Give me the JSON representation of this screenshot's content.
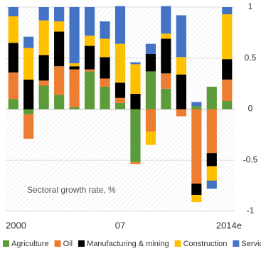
{
  "chart_data": {
    "type": "stacked-bar",
    "annotation": "Sectoral growth rate, %",
    "categories": [
      "2000",
      null,
      null,
      null,
      null,
      null,
      null,
      "07",
      null,
      null,
      null,
      null,
      null,
      null,
      "2014e"
    ],
    "series": [
      {
        "name": "Agriculture",
        "color": "#5b9b3a",
        "values": [
          0.1,
          -0.05,
          0.23,
          0.14,
          0.02,
          0.37,
          0.22,
          0.06,
          -0.52,
          0.37,
          0.2,
          0,
          0.03,
          0.22,
          0.08
        ]
      },
      {
        "name": "Oil",
        "color": "#ed7d31",
        "values": [
          0.26,
          -0.24,
          0.05,
          0.28,
          0.37,
          0.02,
          0.08,
          0.05,
          -0.02,
          -0.22,
          0.15,
          -0.07,
          -0.73,
          -0.43,
          0.21
        ]
      },
      {
        "name": "Manufacturing & mining",
        "color": "#000000",
        "values": [
          0.29,
          0.29,
          0.25,
          0.34,
          0.03,
          0.23,
          0.21,
          0.15,
          0.15,
          0.17,
          0.34,
          0.34,
          -0.11,
          -0.13,
          0.2
        ]
      },
      {
        "name": "Construction",
        "color": "#ffc000",
        "values": [
          0.26,
          0.31,
          0.34,
          0.1,
          0.03,
          0.1,
          0.18,
          0.38,
          0.29,
          -0.13,
          0.05,
          0.17,
          -0.07,
          -0.14,
          0.44
        ]
      },
      {
        "name": "Services",
        "color": "#4472c4",
        "values": [
          0.09,
          0.11,
          0.13,
          0.14,
          0.55,
          0.28,
          0.17,
          0.37,
          0.02,
          0.1,
          0.27,
          0.41,
          0.04,
          -0.08,
          0.07
        ]
      }
    ],
    "ylim": [
      -1,
      1
    ],
    "yticks": [
      -1,
      -0.5,
      0,
      0.5,
      1
    ],
    "grid": true
  }
}
